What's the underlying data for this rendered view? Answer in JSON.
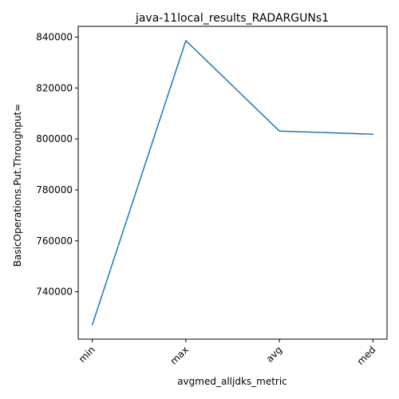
{
  "chart_data": {
    "type": "line",
    "title": "java-11local_results_RADARGUNs1",
    "xlabel": "avgmed_alljdks_metric",
    "ylabel": "BasicOperations.Put.Throughput=",
    "categories": [
      "min",
      "max",
      "avg",
      "med"
    ],
    "series": [
      {
        "values": [
          727000,
          838600,
          803100,
          801800
        ]
      }
    ],
    "yticks": [
      740000,
      760000,
      780000,
      800000,
      820000,
      840000
    ],
    "ytick_labels": [
      "740000",
      "760000",
      "780000",
      "800000",
      "820000",
      "840000"
    ],
    "ylim": [
      721400,
      844200
    ],
    "grid": false,
    "line_color": "#1f77b4"
  }
}
